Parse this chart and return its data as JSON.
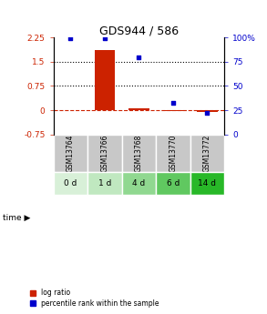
{
  "title": "GDS944 / 586",
  "samples": [
    "GSM13764",
    "GSM13766",
    "GSM13768",
    "GSM13770",
    "GSM13772"
  ],
  "time_labels": [
    "0 d",
    "1 d",
    "4 d",
    "6 d",
    "14 d"
  ],
  "log_ratio": [
    0.0,
    1.87,
    0.07,
    -0.02,
    -0.05
  ],
  "percentile_rank": [
    99,
    99,
    80,
    33,
    22
  ],
  "ylim_left": [
    -0.75,
    2.25
  ],
  "ylim_right": [
    0,
    100
  ],
  "yticks_left": [
    -0.75,
    0,
    0.75,
    1.5,
    2.25
  ],
  "yticks_right": [
    0,
    25,
    50,
    75,
    100
  ],
  "ytick_labels_left": [
    "-0.75",
    "0",
    "0.75",
    "1.5",
    "2.25"
  ],
  "ytick_labels_right": [
    "0",
    "25",
    "50",
    "75",
    "100%"
  ],
  "hlines": [
    0.75,
    1.5
  ],
  "zero_line": 0,
  "bar_color": "#cc2200",
  "scatter_color": "#0000cc",
  "bg_color": "#ffffff",
  "sample_box_color": "#c8c8c8",
  "time_box_colors": [
    "#d8f0d8",
    "#c0e8c0",
    "#90d890",
    "#60c860",
    "#28b828"
  ],
  "bar_width": 0.6,
  "legend_log_label": "log ratio",
  "legend_pct_label": "percentile rank within the sample"
}
